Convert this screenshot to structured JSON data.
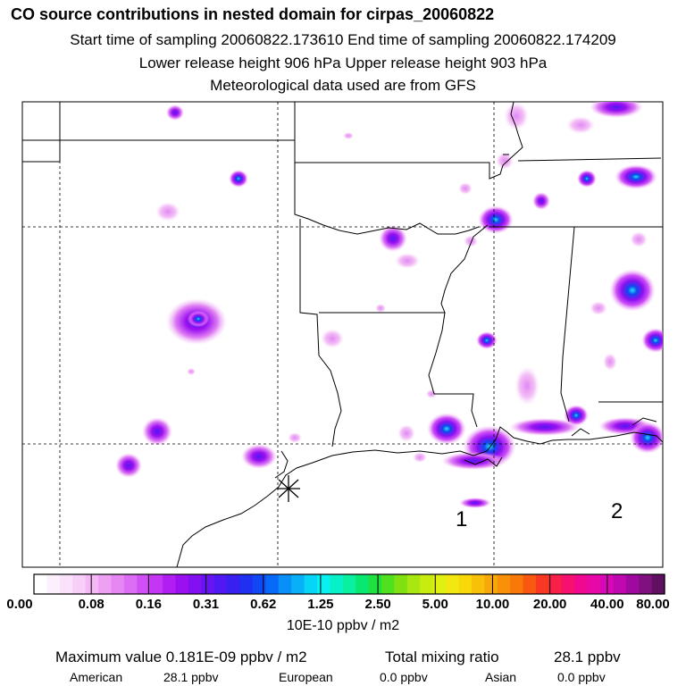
{
  "header": {
    "title": "CO  source contributions in nested domain for cirpas_20060822",
    "line1": "Start time of sampling 20060822.173610     End time of sampling 20060822.174209",
    "line2": "Lower release height  906 hPa       Upper release height  903 hPa",
    "line3": "Meteorological data used are from GFS"
  },
  "map": {
    "markers": [
      "1",
      "2"
    ],
    "receptor_symbol": "asterisk"
  },
  "legend": {
    "tick_labels": [
      "0.00",
      "0.08",
      "0.16",
      "0.31",
      "0.62",
      "1.25",
      "2.50",
      "5.00",
      "10.00",
      "20.00",
      "40.00",
      "80.00"
    ],
    "units": "10E-10 ppbv / m2",
    "colors": [
      "#ffffff",
      "#fdf0fd",
      "#fbe2fb",
      "#f8cff8",
      "#f4b8f4",
      "#eea0f2",
      "#e588f4",
      "#dc6ef6",
      "#d050f6",
      "#c436f4",
      "#b01ef2",
      "#9a10f0",
      "#8210f0",
      "#6814f2",
      "#5018f2",
      "#3820f0",
      "#2030f0",
      "#1048f4",
      "#0868f8",
      "#0890f8",
      "#08b0f8",
      "#08d4f8",
      "#08f0f0",
      "#08f0c8",
      "#08f0a0",
      "#08e870",
      "#20e040",
      "#50e020",
      "#80e010",
      "#a8e810",
      "#c8ec10",
      "#e0f010",
      "#f0e810",
      "#f8d808",
      "#f8c008",
      "#f8a808",
      "#f89008",
      "#f87808",
      "#f85810",
      "#f83820",
      "#f82048",
      "#f81070",
      "#f00890",
      "#e808a8",
      "#d808b8",
      "#c008b0",
      "#a008a0",
      "#801080",
      "#601060"
    ]
  },
  "footer": {
    "max_label": "Maximum value  0.181E-09 ppbv / m2",
    "total_label": "Total mixing ratio",
    "total_value": "28.1 ppbv",
    "american_label": "American",
    "american_value": "28.1 ppbv",
    "european_label": "European",
    "european_value": "0.0 ppbv",
    "asian_label": "Asian",
    "asian_value": "0.0 ppbv"
  },
  "colors": {
    "plume_light": "#f6c8f6",
    "plume_magenta": "#d050f6",
    "plume_purple": "#8a10f0",
    "plume_blue": "#1040f0",
    "plume_cyan": "#20e0f0"
  }
}
